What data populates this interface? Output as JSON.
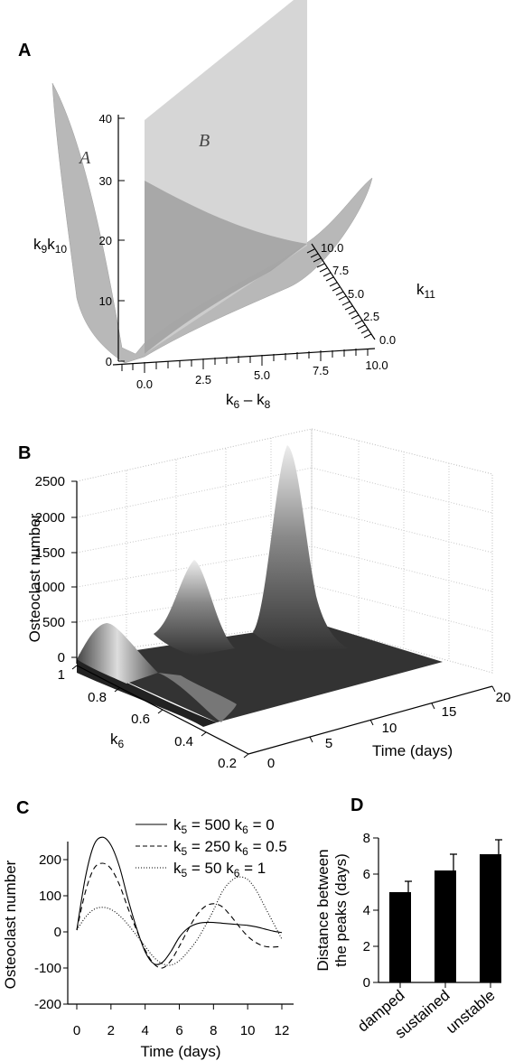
{
  "panels": {
    "a": {
      "letter": "A"
    },
    "b": {
      "letter": "B"
    },
    "c": {
      "letter": "C"
    },
    "d": {
      "letter": "D"
    }
  },
  "chart_data": [
    {
      "panel": "A",
      "type": "surface3d",
      "region_labels": [
        "A",
        "B"
      ],
      "xlabel": "k6 − k8",
      "x_ticks": [
        "0.0",
        "2.5",
        "5.0",
        "7.5",
        "10.0"
      ],
      "ylabel": "k11",
      "y_ticks": [
        "0.0",
        "2.5",
        "5.0",
        "7.5",
        "10.0"
      ],
      "zlabel": "k9k10",
      "z_ticks": [
        "0",
        "10",
        "20",
        "30",
        "40"
      ]
    },
    {
      "panel": "B",
      "type": "surface3d",
      "xlabel": "Time (days)",
      "x_ticks": [
        "0",
        "5",
        "10",
        "15",
        "20"
      ],
      "ylabel": "k6",
      "y_ticks": [
        "0.2",
        "0.4",
        "0.6",
        "0.8",
        "1"
      ],
      "zlabel": "Osteoclast number",
      "z_ticks": [
        "0",
        "500",
        "1000",
        "1500",
        "2000",
        "2500"
      ],
      "peaks": [
        {
          "k6": 1.0,
          "time": 2,
          "height": 500
        },
        {
          "k6": 0.5,
          "time": 8,
          "height": 1600
        },
        {
          "k6": 0.2,
          "time": 14,
          "height": 2500
        }
      ]
    },
    {
      "panel": "C",
      "type": "line",
      "xlabel": "Time (days)",
      "ylabel": "Osteoclast number",
      "xlim": [
        0,
        12
      ],
      "ylim": [
        -200,
        250
      ],
      "x_ticks": [
        "0",
        "2",
        "4",
        "6",
        "8",
        "10",
        "12"
      ],
      "y_ticks": [
        "-200",
        "-100",
        "0",
        "100",
        "200"
      ],
      "series": [
        {
          "name": "k5 = 500 k6 = 0",
          "style": "solid",
          "x": [
            0,
            0.5,
            1,
            1.5,
            2,
            2.5,
            3,
            3.5,
            4,
            4.5,
            5,
            5.5,
            6,
            6.5,
            7,
            7.5,
            8,
            8.5,
            9,
            9.5,
            10,
            10.5,
            11,
            11.5,
            12
          ],
          "y": [
            5,
            150,
            240,
            262,
            240,
            180,
            90,
            10,
            -55,
            -88,
            -85,
            -55,
            -15,
            10,
            22,
            26,
            26,
            24,
            22,
            20,
            18,
            14,
            8,
            2,
            -2
          ]
        },
        {
          "name": "k5 = 250 k6 = 0.5",
          "style": "dashed",
          "x": [
            0,
            0.5,
            1,
            1.5,
            2,
            2.5,
            3,
            3.5,
            4,
            4.5,
            5,
            5.5,
            6,
            6.5,
            7,
            7.5,
            8,
            8.5,
            9,
            9.5,
            10,
            10.5,
            11,
            11.5,
            12
          ],
          "y": [
            5,
            110,
            175,
            190,
            175,
            130,
            65,
            5,
            -50,
            -88,
            -100,
            -80,
            -40,
            5,
            45,
            70,
            78,
            70,
            45,
            15,
            -12,
            -30,
            -40,
            -42,
            -40
          ]
        },
        {
          "name": "k5 = 50 k6 = 1",
          "style": "dotted",
          "x": [
            0,
            0.5,
            1,
            1.5,
            2,
            2.5,
            3,
            3.5,
            4,
            4.5,
            5,
            5.5,
            6,
            6.5,
            7,
            7.5,
            8,
            8.5,
            9,
            9.5,
            10,
            10.5,
            11,
            11.5,
            12
          ],
          "y": [
            5,
            40,
            62,
            68,
            62,
            45,
            20,
            -10,
            -40,
            -70,
            -88,
            -92,
            -80,
            -55,
            -25,
            15,
            60,
            110,
            140,
            152,
            145,
            115,
            70,
            25,
            -20
          ]
        }
      ]
    },
    {
      "panel": "D",
      "type": "bar",
      "ylabel": "Distance between the peaks (days)",
      "categories": [
        "damped",
        "sustained",
        "unstable"
      ],
      "values": [
        5.0,
        6.2,
        7.1
      ],
      "errors": [
        0.6,
        0.9,
        0.8
      ],
      "ylim": [
        0,
        8
      ],
      "y_ticks": [
        "0",
        "2",
        "4",
        "6",
        "8"
      ]
    }
  ]
}
